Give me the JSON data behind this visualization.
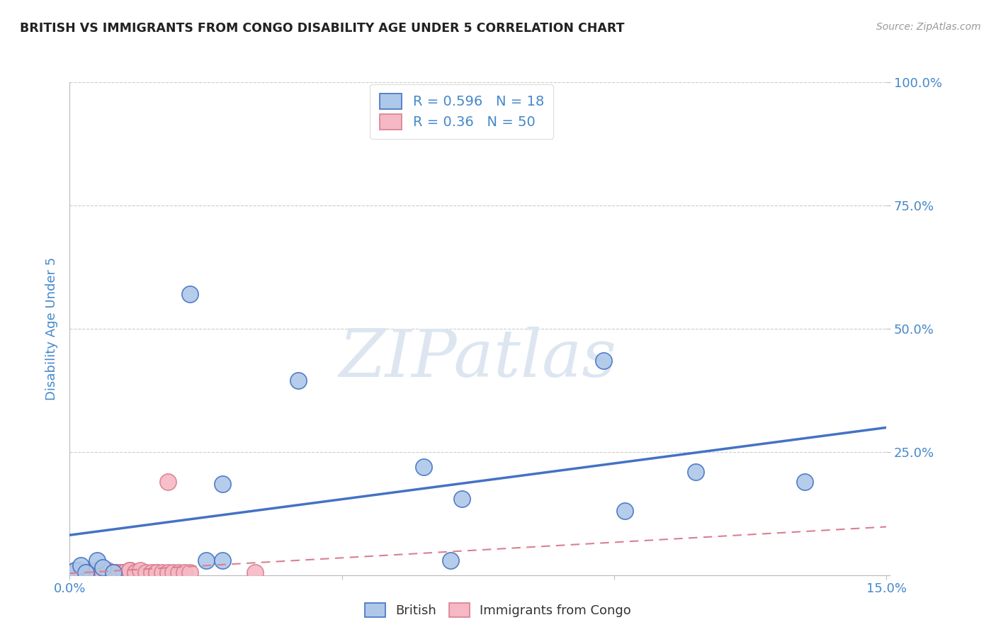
{
  "title": "BRITISH VS IMMIGRANTS FROM CONGO DISABILITY AGE UNDER 5 CORRELATION CHART",
  "source": "Source: ZipAtlas.com",
  "ylabel": "Disability Age Under 5",
  "xlim": [
    0.0,
    0.15
  ],
  "ylim": [
    0.0,
    1.0
  ],
  "british_R": 0.596,
  "british_N": 18,
  "congo_R": 0.36,
  "congo_N": 50,
  "british_color": "#adc8e8",
  "british_line_color": "#4472c4",
  "congo_color": "#f5b8c4",
  "congo_line_color": "#d98090",
  "background_color": "#ffffff",
  "watermark_color": "#dde6f0",
  "title_color": "#222222",
  "axis_label_color": "#4488cc",
  "legend_text_color": "#4488cc",
  "british_x": [
    0.001,
    0.002,
    0.003,
    0.005,
    0.006,
    0.008,
    0.022,
    0.025,
    0.028,
    0.028,
    0.042,
    0.065,
    0.07,
    0.072,
    0.098,
    0.102,
    0.115,
    0.135
  ],
  "british_y": [
    0.01,
    0.02,
    0.005,
    0.03,
    0.015,
    0.005,
    0.57,
    0.03,
    0.03,
    0.185,
    0.395,
    0.22,
    0.03,
    0.155,
    0.435,
    0.13,
    0.21,
    0.19
  ],
  "congo_x": [
    0.0005,
    0.001,
    0.001,
    0.002,
    0.002,
    0.002,
    0.003,
    0.003,
    0.003,
    0.004,
    0.004,
    0.004,
    0.004,
    0.005,
    0.005,
    0.005,
    0.006,
    0.006,
    0.007,
    0.007,
    0.008,
    0.008,
    0.008,
    0.009,
    0.009,
    0.009,
    0.009,
    0.01,
    0.01,
    0.01,
    0.01,
    0.01,
    0.011,
    0.011,
    0.011,
    0.012,
    0.012,
    0.013,
    0.014,
    0.015,
    0.016,
    0.016,
    0.017,
    0.018,
    0.018,
    0.019,
    0.02,
    0.021,
    0.022,
    0.034
  ],
  "congo_y": [
    0.005,
    0.01,
    0.005,
    0.005,
    0.01,
    0.01,
    0.005,
    0.005,
    0.005,
    0.005,
    0.005,
    0.01,
    0.005,
    0.005,
    0.01,
    0.005,
    0.005,
    0.005,
    0.005,
    0.01,
    0.005,
    0.005,
    0.005,
    0.005,
    0.005,
    0.005,
    0.005,
    0.005,
    0.005,
    0.005,
    0.005,
    0.005,
    0.01,
    0.01,
    0.01,
    0.005,
    0.005,
    0.01,
    0.005,
    0.005,
    0.005,
    0.005,
    0.005,
    0.19,
    0.005,
    0.005,
    0.005,
    0.005,
    0.005,
    0.005
  ],
  "y_ticks": [
    0.0,
    0.25,
    0.5,
    0.75,
    1.0
  ],
  "y_tick_labels": [
    "",
    "25.0%",
    "50.0%",
    "75.0%",
    "100.0%"
  ],
  "x_ticks": [
    0.0,
    0.05,
    0.1,
    0.15
  ],
  "x_tick_labels": [
    "0.0%",
    "",
    "",
    "15.0%"
  ]
}
